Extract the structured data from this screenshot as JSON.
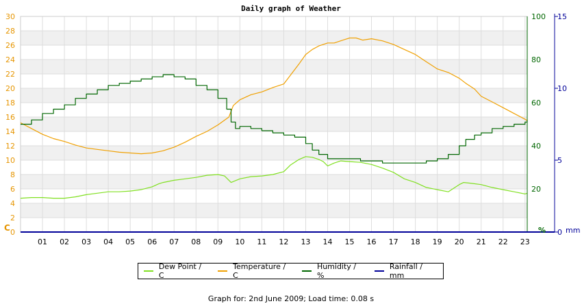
{
  "chart_data": {
    "type": "line",
    "title": "Daily graph of Weather",
    "x_ticks": [
      "01",
      "02",
      "03",
      "04",
      "05",
      "06",
      "07",
      "08",
      "09",
      "10",
      "11",
      "12",
      "13",
      "14",
      "15",
      "16",
      "17",
      "18",
      "19",
      "20",
      "21",
      "22",
      "23"
    ],
    "xlim": [
      0,
      23.1
    ],
    "left_axis": {
      "unit_label": "C",
      "range": [
        0,
        30
      ],
      "ticks": [
        0,
        2,
        4,
        6,
        8,
        10,
        12,
        14,
        16,
        18,
        20,
        22,
        24,
        26,
        28,
        30
      ],
      "color": "#e69500"
    },
    "right_axis_1": {
      "unit_label": "%",
      "range": [
        0,
        100
      ],
      "ticks": [
        0,
        20,
        40,
        60,
        80,
        100
      ],
      "color": "#006600"
    },
    "right_axis_2": {
      "unit_label": "mm",
      "range": [
        0,
        15
      ],
      "ticks": [
        0,
        5,
        10,
        15
      ],
      "color": "#000099"
    },
    "grid": true,
    "legend_position": "bottom",
    "series": [
      {
        "name": "Dew Point / C",
        "color": "#80e020",
        "axis": "left",
        "x": [
          0,
          0.5,
          1,
          1.5,
          2,
          2.5,
          3,
          3.5,
          4,
          4.5,
          5,
          5.5,
          6,
          6.3,
          6.5,
          7,
          7.5,
          8,
          8.5,
          9,
          9.3,
          9.6,
          10,
          10.5,
          11,
          11.5,
          12,
          12.3,
          12.7,
          13,
          13.3,
          13.6,
          13.8,
          14,
          14.3,
          14.6,
          15,
          15.5,
          16,
          16.5,
          17,
          17.5,
          18,
          18.5,
          19,
          19.5,
          20,
          20.2,
          20.5,
          21,
          21.5,
          22,
          22.5,
          23,
          23.1
        ],
        "values": [
          4.7,
          4.8,
          4.8,
          4.7,
          4.7,
          4.9,
          5.2,
          5.4,
          5.6,
          5.6,
          5.7,
          5.9,
          6.3,
          6.7,
          6.9,
          7.2,
          7.4,
          7.6,
          7.9,
          8.0,
          7.8,
          6.9,
          7.4,
          7.7,
          7.8,
          8.0,
          8.4,
          9.3,
          10.1,
          10.5,
          10.4,
          10.1,
          9.8,
          9.2,
          9.6,
          9.9,
          9.8,
          9.7,
          9.4,
          8.9,
          8.3,
          7.4,
          6.9,
          6.2,
          5.9,
          5.6,
          6.6,
          6.9,
          6.8,
          6.6,
          6.2,
          5.9,
          5.6,
          5.3,
          5.4
        ]
      },
      {
        "name": "Temperature / C",
        "color": "#f0a000",
        "axis": "left",
        "x": [
          0,
          0.5,
          1,
          1.5,
          2,
          2.5,
          3,
          3.5,
          4,
          4.5,
          5,
          5.5,
          6,
          6.5,
          7,
          7.5,
          8,
          8.5,
          9,
          9.5,
          9.7,
          10,
          10.5,
          11,
          11.5,
          12,
          12.3,
          12.7,
          13,
          13.3,
          13.6,
          14,
          14.3,
          14.7,
          15,
          15.3,
          15.6,
          16,
          16.5,
          17,
          17.5,
          18,
          18.5,
          19,
          19.5,
          20,
          20.3,
          20.7,
          21,
          21.5,
          22,
          22.5,
          23,
          23.1
        ],
        "values": [
          15.2,
          14.4,
          13.6,
          13.0,
          12.6,
          12.1,
          11.7,
          11.5,
          11.3,
          11.1,
          11.0,
          10.9,
          11.0,
          11.3,
          11.8,
          12.5,
          13.3,
          14.0,
          14.9,
          16.0,
          17.6,
          18.4,
          19.1,
          19.5,
          20.1,
          20.6,
          21.8,
          23.4,
          24.7,
          25.4,
          25.9,
          26.3,
          26.3,
          26.7,
          27.0,
          27.0,
          26.7,
          26.9,
          26.6,
          26.1,
          25.4,
          24.7,
          23.7,
          22.7,
          22.2,
          21.4,
          20.7,
          19.9,
          18.9,
          18.1,
          17.3,
          16.5,
          15.7,
          15.5
        ]
      },
      {
        "name": "Humidity / %",
        "color": "#006600",
        "axis": "right_1",
        "x": [
          0,
          0.5,
          1,
          1.5,
          2,
          2.5,
          3,
          3.5,
          4,
          4.5,
          5,
          5.5,
          6,
          6.5,
          7,
          7.5,
          8,
          8.5,
          9,
          9.4,
          9.6,
          9.8,
          10,
          10.5,
          11,
          11.5,
          12,
          12.5,
          13,
          13.3,
          13.6,
          14,
          14.5,
          15,
          15.5,
          16,
          16.5,
          17,
          17.5,
          18,
          18.5,
          19,
          19.5,
          20,
          20.3,
          20.7,
          21,
          21.5,
          22,
          22.5,
          23,
          23.1
        ],
        "values": [
          50,
          52,
          55,
          57,
          59,
          62,
          64,
          66,
          68,
          69,
          70,
          71,
          72,
          73,
          72,
          71,
          68,
          66,
          62,
          57,
          51,
          48,
          49,
          48,
          47,
          46,
          45,
          44,
          41,
          38,
          36,
          34,
          34,
          34,
          33,
          33,
          32,
          32,
          32,
          32,
          33,
          34,
          36,
          40,
          43,
          45,
          46,
          48,
          49,
          50,
          51,
          52
        ]
      },
      {
        "name": "Rainfall / mm",
        "color": "#000099",
        "axis": "right_2",
        "x": [
          0,
          23.1
        ],
        "values": [
          0,
          0
        ]
      }
    ]
  },
  "footer": "Graph for: 2nd June 2009; Load time: 0.08 s"
}
